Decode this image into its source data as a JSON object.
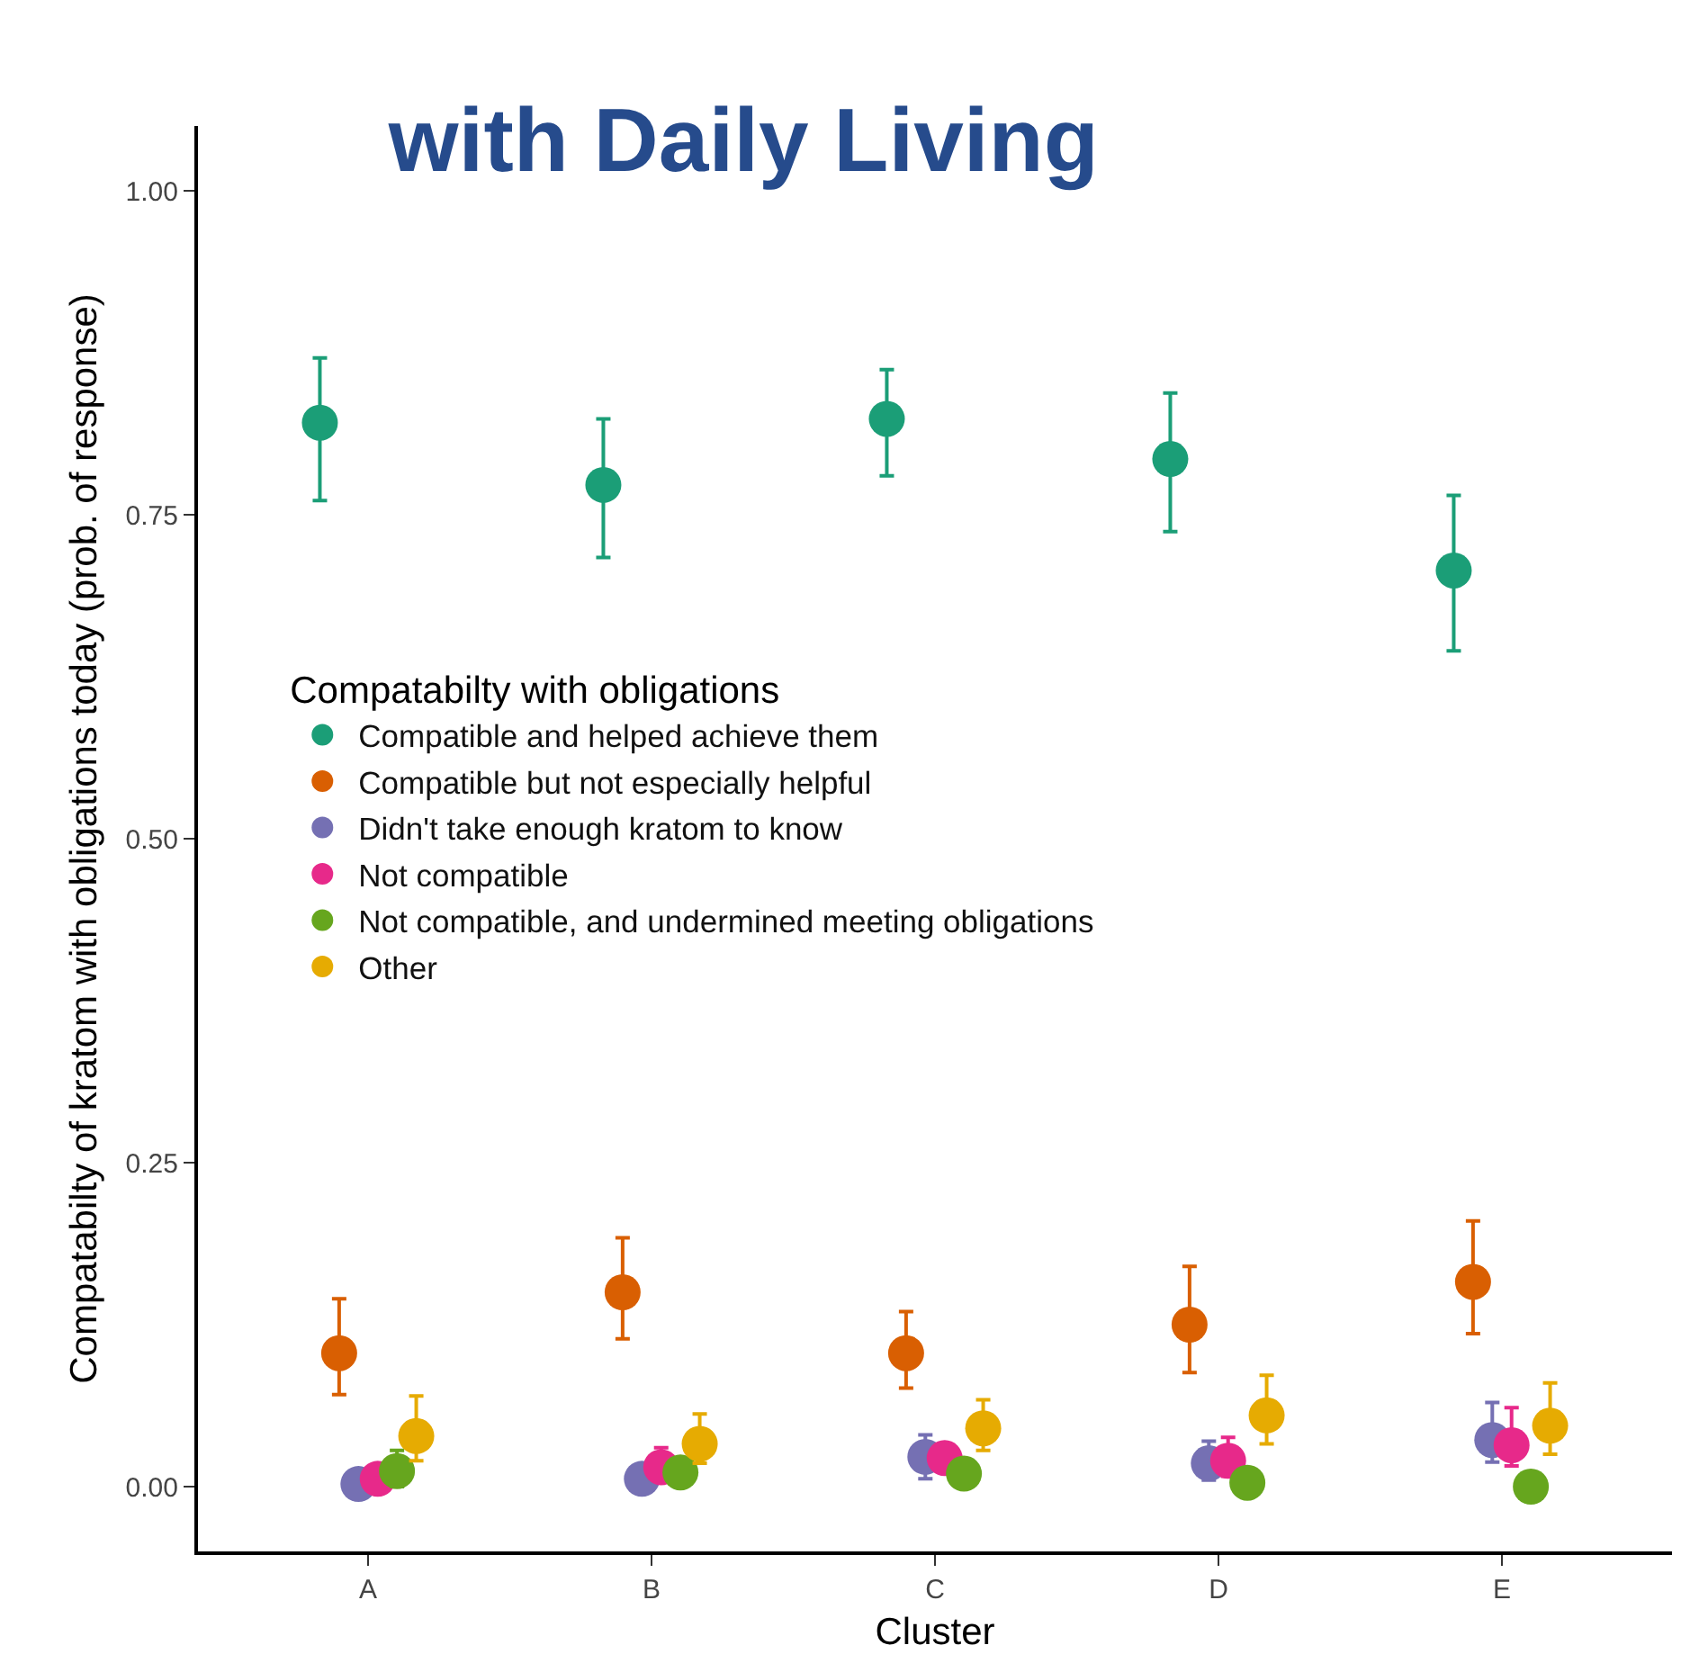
{
  "chart_data": {
    "type": "scatter",
    "title": "with Daily Living",
    "xlabel": "Cluster",
    "ylabel": "Compatabilty of kratom with obligations today (prob. of response)",
    "legend_title": "Compatabilty with obligations",
    "categories": [
      "A",
      "B",
      "C",
      "D",
      "E"
    ],
    "ylim": [
      -0.05,
      1.05
    ],
    "yticks": [
      {
        "value": 0,
        "label": "0.00"
      },
      {
        "value": 0.25,
        "label": "0.25"
      },
      {
        "value": 0.5,
        "label": "0.50"
      },
      {
        "value": 0.75,
        "label": "0.75"
      },
      {
        "value": 1,
        "label": "1.00"
      }
    ],
    "grid": false,
    "legend": "left",
    "marker": "circle",
    "series": [
      {
        "name": "Compatible and helped achieve them",
        "color": "#1b9e77",
        "values": [
          0.821,
          0.773,
          0.824,
          0.793,
          0.707
        ],
        "errors": [
          [
            0.761,
            0.871
          ],
          [
            0.717,
            0.824
          ],
          [
            0.78,
            0.862
          ],
          [
            0.737,
            0.844
          ],
          [
            0.645,
            0.765
          ]
        ]
      },
      {
        "name": "Compatible but not especially helpful",
        "color": "#d95f02",
        "values": [
          0.103,
          0.15,
          0.103,
          0.125,
          0.158
        ],
        "errors": [
          [
            0.071,
            0.145
          ],
          [
            0.114,
            0.192
          ],
          [
            0.076,
            0.135
          ],
          [
            0.088,
            0.17
          ],
          [
            0.118,
            0.205
          ]
        ]
      },
      {
        "name": "Didn't take enough kratom to know",
        "color": "#7570b3",
        "values": [
          0.002,
          0.006,
          0.023,
          0.018,
          0.036
        ],
        "errors": [
          null,
          null,
          [
            0.006,
            0.04
          ],
          [
            0.005,
            0.035
          ],
          [
            0.019,
            0.065
          ]
        ]
      },
      {
        "name": "Not compatible",
        "color": "#e7298a",
        "values": [
          0.006,
          0.015,
          0.022,
          0.02,
          0.032
        ],
        "errors": [
          null,
          [
            0.005,
            0.03
          ],
          null,
          [
            0.008,
            0.038
          ],
          [
            0.016,
            0.061
          ]
        ]
      },
      {
        "name": "Not compatible, and undermined meeting obligations",
        "color": "#66a61e",
        "values": [
          0.012,
          0.011,
          0.01,
          0.003,
          0.0
        ],
        "errors": [
          [
            0.0,
            0.028
          ],
          null,
          null,
          null,
          null
        ]
      },
      {
        "name": "Other",
        "color": "#e6ab02",
        "values": [
          0.039,
          0.033,
          0.045,
          0.055,
          0.047
        ],
        "errors": [
          [
            0.02,
            0.07
          ],
          [
            0.018,
            0.056
          ],
          [
            0.028,
            0.067
          ],
          [
            0.033,
            0.086
          ],
          [
            0.025,
            0.08
          ]
        ]
      }
    ]
  }
}
